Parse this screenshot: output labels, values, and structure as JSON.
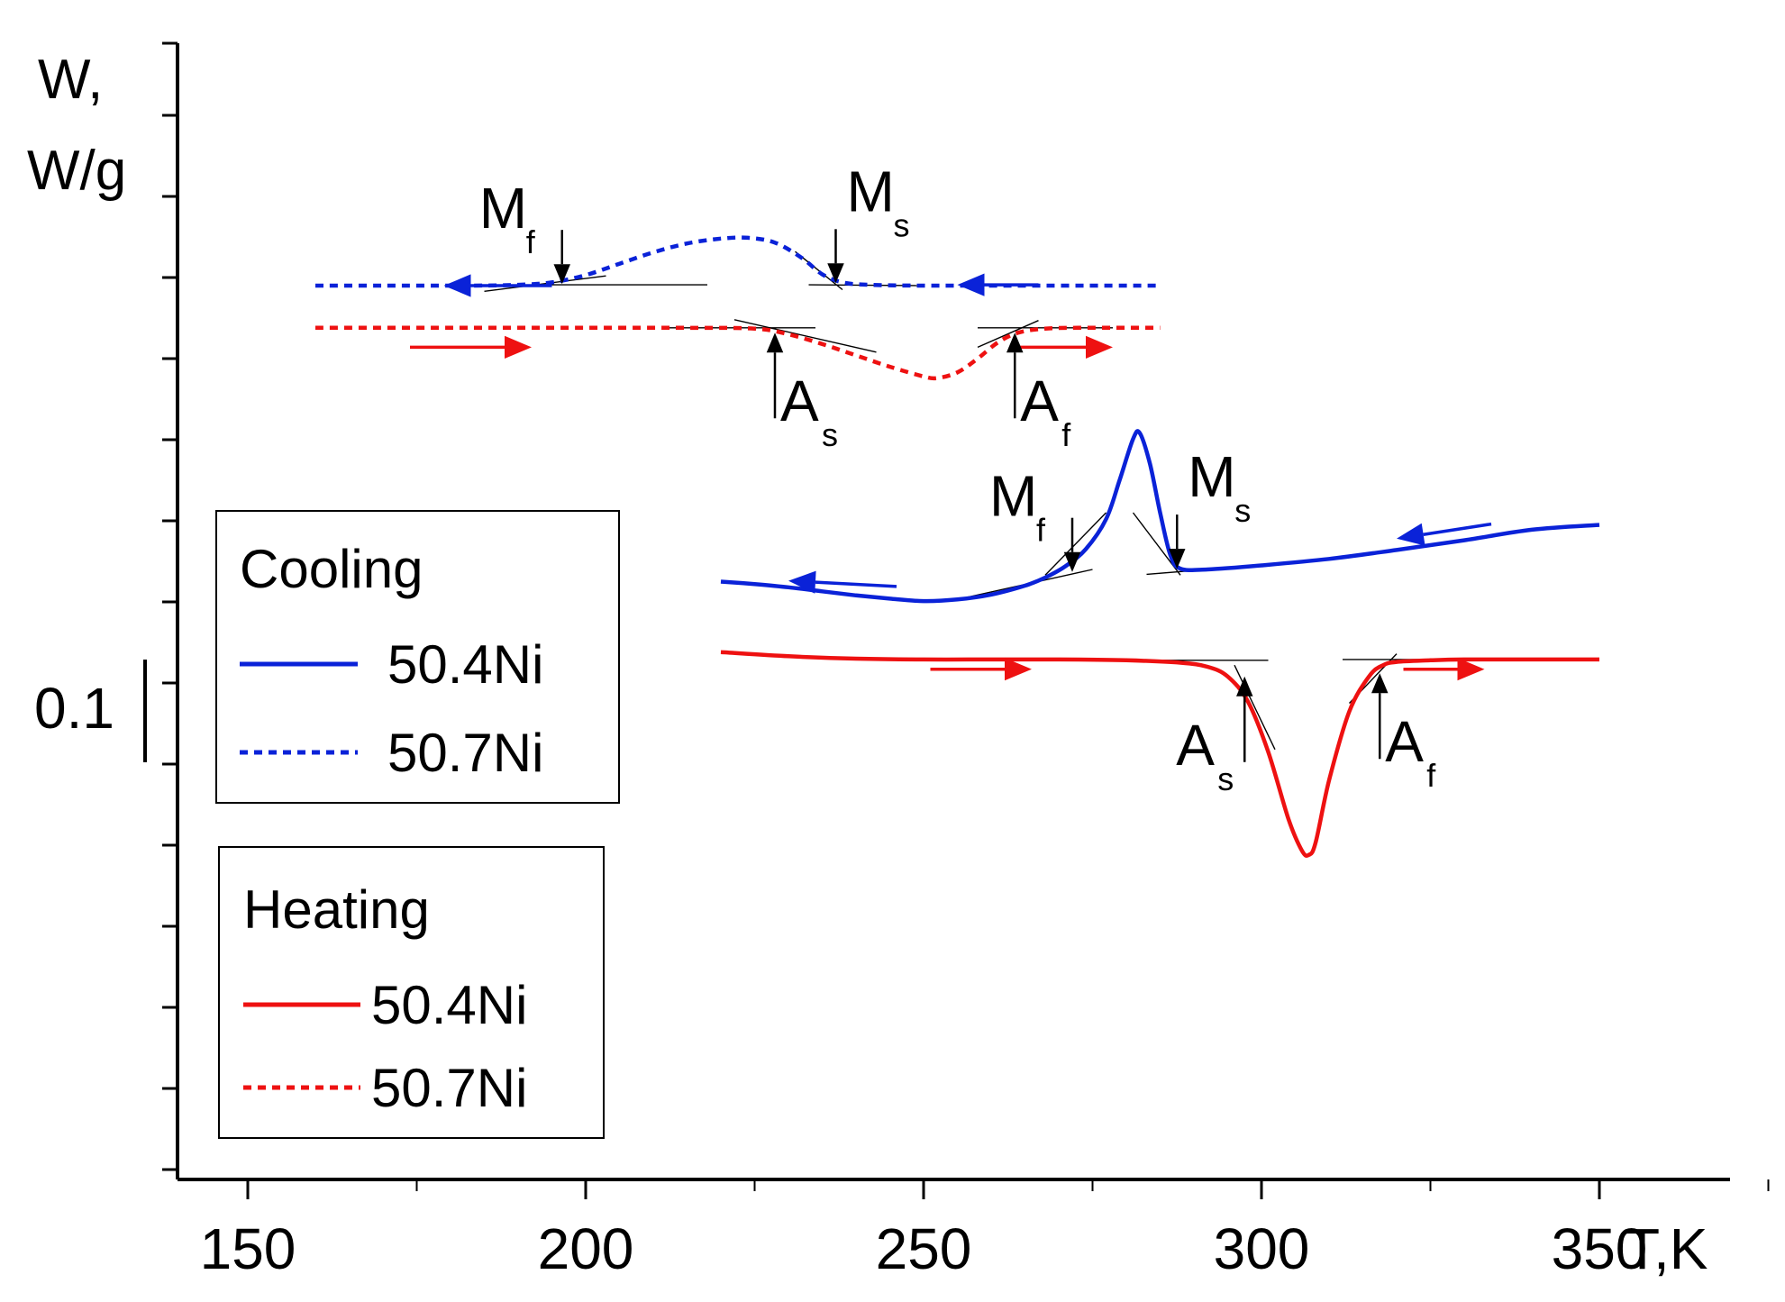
{
  "chart_data": {
    "type": "line",
    "title": "",
    "xlabel": "T,K",
    "ylabel_line1": "W,",
    "ylabel_line2": "W/g",
    "xlim": [
      140,
      370
    ],
    "xticks": [
      150,
      200,
      250,
      300,
      350
    ],
    "xtick_labels": [
      "150",
      "200",
      "250",
      "300",
      "350"
    ],
    "scale_bar": {
      "label": "0.1",
      "value": 0.1,
      "units": "W/g"
    },
    "series": [
      {
        "name": "50.4Ni cooling",
        "group": "Cooling",
        "color": "#0a22d8",
        "style": "solid",
        "x": [
          220,
          225,
          230,
          235,
          240,
          245,
          250,
          255,
          260,
          265,
          268,
          271,
          274,
          277,
          279,
          281,
          282,
          283.5,
          285,
          286.5,
          288,
          292,
          300,
          310,
          320,
          330,
          340,
          350
        ],
        "y": [
          -0.075,
          -0.078,
          -0.082,
          -0.087,
          -0.092,
          -0.096,
          -0.099,
          -0.097,
          -0.091,
          -0.08,
          -0.07,
          -0.056,
          -0.035,
          0.002,
          0.05,
          0.101,
          0.108,
          0.07,
          0.01,
          -0.042,
          -0.059,
          -0.06,
          -0.055,
          -0.047,
          -0.036,
          -0.024,
          -0.011,
          -0.005
        ]
      },
      {
        "name": "50.7Ni cooling",
        "group": "Cooling",
        "color": "#0a22d8",
        "style": "dashed",
        "x": [
          160,
          170,
          183,
          190,
          195,
          200,
          205,
          210,
          215,
          220,
          224,
          228,
          232,
          235,
          238,
          242,
          250,
          260,
          270,
          285
        ],
        "y": [
          0.29,
          0.29,
          0.29,
          0.291,
          0.294,
          0.303,
          0.317,
          0.331,
          0.342,
          0.348,
          0.349,
          0.343,
          0.324,
          0.304,
          0.294,
          0.291,
          0.29,
          0.29,
          0.29,
          0.29
        ]
      },
      {
        "name": "50.4Ni heating",
        "group": "Heating",
        "color": "#ee1111",
        "style": "solid",
        "x": [
          220,
          230,
          240,
          250,
          260,
          270,
          280,
          288,
          292,
          295,
          298,
          301,
          304,
          306,
          307,
          308,
          310,
          313,
          316,
          318,
          320,
          325,
          330,
          340,
          350
        ],
        "y": [
          -0.162,
          -0.167,
          -0.17,
          -0.171,
          -0.171,
          -0.171,
          -0.172,
          -0.175,
          -0.18,
          -0.192,
          -0.223,
          -0.285,
          -0.368,
          -0.407,
          -0.412,
          -0.397,
          -0.32,
          -0.235,
          -0.191,
          -0.178,
          -0.174,
          -0.172,
          -0.171,
          -0.171,
          -0.171
        ]
      },
      {
        "name": "50.7Ni heating",
        "group": "Heating",
        "color": "#ee1111",
        "style": "dashed",
        "x": [
          160,
          180,
          200,
          215,
          225,
          230,
          235,
          240,
          245,
          250,
          252,
          255,
          258,
          261,
          264,
          268,
          273,
          280,
          285
        ],
        "y": [
          0.238,
          0.238,
          0.238,
          0.238,
          0.237,
          0.23,
          0.218,
          0.204,
          0.19,
          0.178,
          0.176,
          0.183,
          0.2,
          0.22,
          0.232,
          0.237,
          0.238,
          0.238,
          0.238
        ]
      }
    ],
    "annotations": [
      {
        "main": "M",
        "sub": "f",
        "x": 196.5,
        "y": 0.292,
        "dir": "down",
        "color": "#000000"
      },
      {
        "main": "M",
        "sub": "s",
        "x": 237,
        "y": 0.293,
        "dir": "down",
        "color": "#000000"
      },
      {
        "main": "A",
        "sub": "s",
        "x": 228,
        "y": 0.232,
        "dir": "up",
        "color": "#000000"
      },
      {
        "main": "A",
        "sub": "f",
        "x": 263.5,
        "y": 0.232,
        "dir": "up",
        "color": "#000000"
      },
      {
        "main": "M",
        "sub": "f",
        "x": 272,
        "y": -0.063,
        "dir": "down",
        "color": "#000000"
      },
      {
        "main": "M",
        "sub": "s",
        "x": 287.5,
        "y": -0.059,
        "dir": "down",
        "color": "#000000"
      },
      {
        "main": "A",
        "sub": "s",
        "x": 297.5,
        "y": -0.192,
        "dir": "up",
        "color": "#000000"
      },
      {
        "main": "A",
        "sub": "f",
        "x": 317.5,
        "y": -0.188,
        "dir": "up",
        "color": "#000000"
      }
    ],
    "tangents": [
      {
        "x1": 185,
        "y1": 0.283,
        "x2": 203,
        "y2": 0.302
      },
      {
        "x1": 192,
        "y1": 0.291,
        "x2": 218,
        "y2": 0.291
      },
      {
        "x1": 231,
        "y1": 0.332,
        "x2": 238,
        "y2": 0.285
      },
      {
        "x1": 233,
        "y1": 0.291,
        "x2": 250,
        "y2": 0.29
      },
      {
        "x1": 212,
        "y1": 0.238,
        "x2": 234,
        "y2": 0.238
      },
      {
        "x1": 222,
        "y1": 0.248,
        "x2": 243,
        "y2": 0.208
      },
      {
        "x1": 258,
        "y1": 0.214,
        "x2": 267,
        "y2": 0.247
      },
      {
        "x1": 258,
        "y1": 0.238,
        "x2": 278,
        "y2": 0.238
      },
      {
        "x1": 255,
        "y1": -0.097,
        "x2": 275,
        "y2": -0.06
      },
      {
        "x1": 268,
        "y1": -0.067,
        "x2": 277,
        "y2": 0.01
      },
      {
        "x1": 281,
        "y1": 0.01,
        "x2": 288,
        "y2": -0.067
      },
      {
        "x1": 283,
        "y1": -0.066,
        "x2": 301,
        "y2": -0.054
      },
      {
        "x1": 283,
        "y1": -0.172,
        "x2": 301,
        "y2": -0.172
      },
      {
        "x1": 296,
        "y1": -0.178,
        "x2": 302,
        "y2": -0.282
      },
      {
        "x1": 313,
        "y1": -0.225,
        "x2": 320,
        "y2": -0.164
      },
      {
        "x1": 312,
        "y1": -0.171,
        "x2": 328,
        "y2": -0.171
      }
    ],
    "direction_arrows": [
      {
        "x1": 195,
        "y1": 0.29,
        "x2": 179,
        "y2": 0.29,
        "color": "#0a22d8"
      },
      {
        "x1": 267,
        "y1": 0.291,
        "x2": 255,
        "y2": 0.291,
        "color": "#0a22d8"
      },
      {
        "x1": 174,
        "y1": 0.214,
        "x2": 192,
        "y2": 0.214,
        "color": "#ee1111"
      },
      {
        "x1": 263,
        "y1": 0.214,
        "x2": 278,
        "y2": 0.214,
        "color": "#ee1111"
      },
      {
        "x1": 246,
        "y1": -0.081,
        "x2": 230,
        "y2": -0.074,
        "color": "#0a22d8"
      },
      {
        "x1": 334,
        "y1": -0.004,
        "x2": 320,
        "y2": -0.022,
        "color": "#0a22d8"
      },
      {
        "x1": 251,
        "y1": -0.183,
        "x2": 266,
        "y2": -0.183,
        "color": "#ee1111"
      },
      {
        "x1": 321,
        "y1": -0.183,
        "x2": 333,
        "y2": -0.183,
        "color": "#ee1111"
      }
    ]
  },
  "legend": {
    "cooling": {
      "title": "Cooling",
      "items": [
        {
          "label": "50.4Ni",
          "color": "#0a22d8",
          "style": "solid"
        },
        {
          "label": "50.7Ni",
          "color": "#0a22d8",
          "style": "dashed"
        }
      ]
    },
    "heating": {
      "title": "Heating",
      "items": [
        {
          "label": "50.4Ni",
          "color": "#ee1111",
          "style": "solid"
        },
        {
          "label": "50.7Ni",
          "color": "#ee1111",
          "style": "dashed"
        }
      ]
    }
  }
}
